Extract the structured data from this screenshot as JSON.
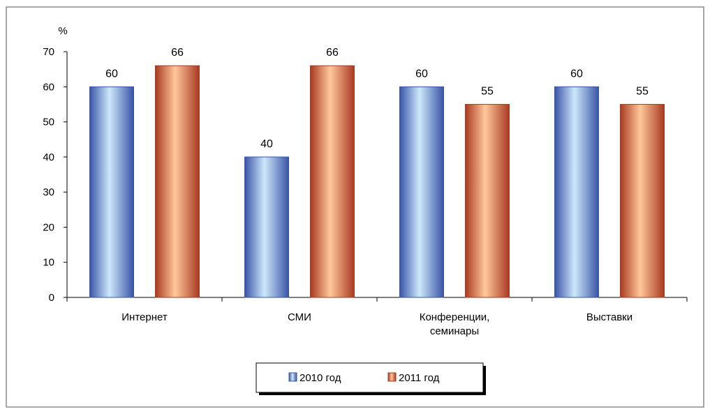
{
  "chart_data": {
    "type": "bar",
    "title": "",
    "xlabel": "",
    "ylabel": "%",
    "ylim": [
      0,
      70
    ],
    "yticks": [
      0,
      10,
      20,
      30,
      40,
      50,
      60,
      70
    ],
    "grid": false,
    "legend_position": "bottom",
    "categories": [
      [
        "Интернет"
      ],
      [
        "СМИ"
      ],
      [
        "Конференции,",
        "семинары"
      ],
      [
        "Выставки"
      ]
    ],
    "series": [
      {
        "name": "2010 год",
        "values": [
          60,
          40,
          60,
          60
        ],
        "color": "#3a54a6",
        "highlight": "#cde8fb"
      },
      {
        "name": "2011 год",
        "values": [
          66,
          66,
          55,
          55
        ],
        "color": "#a83a22",
        "highlight": "#ffc89a"
      }
    ]
  }
}
